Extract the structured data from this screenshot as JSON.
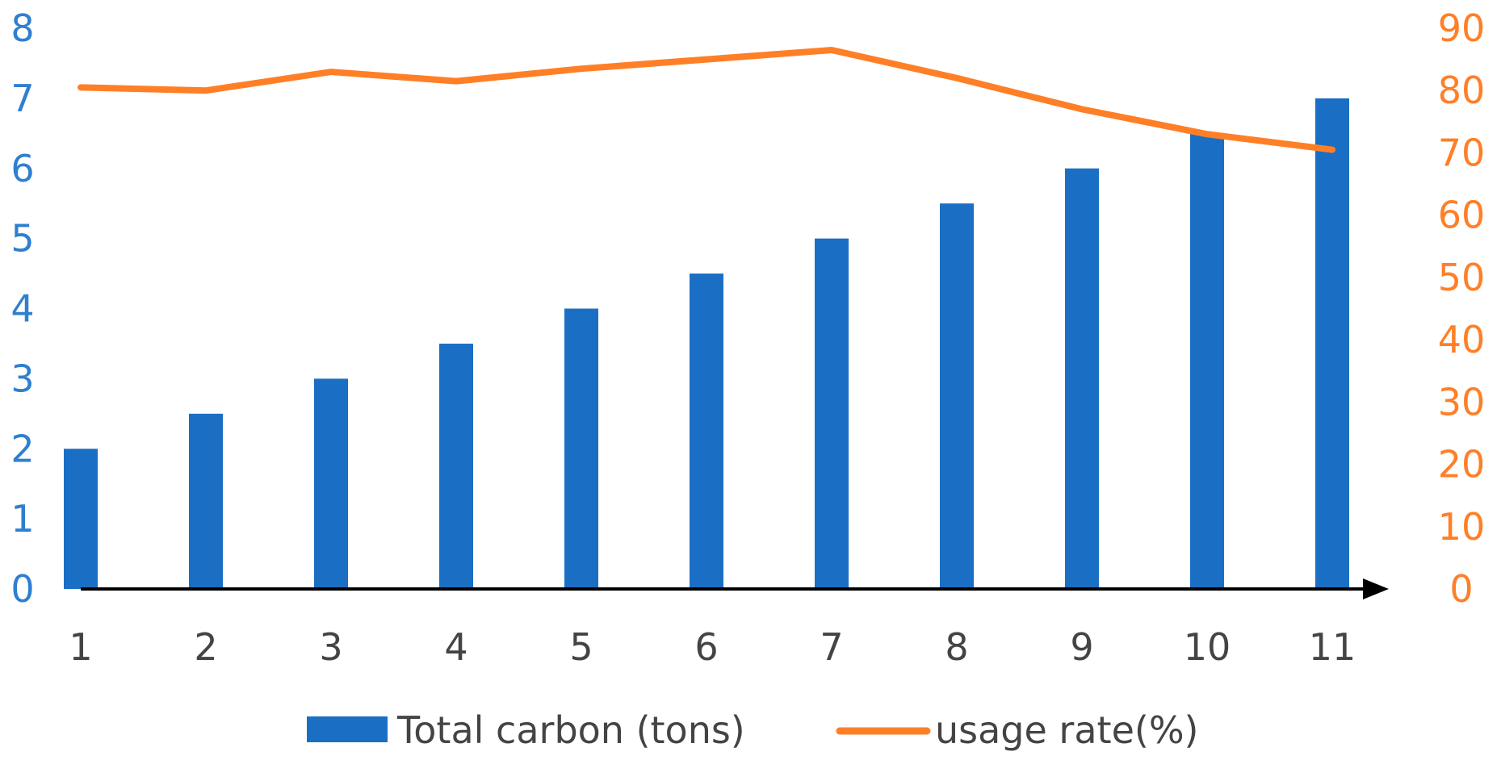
{
  "colors": {
    "bar": "#1a6fc4",
    "line": "#ff7f27",
    "left_axis_text": "#2f7fd0",
    "right_axis_text": "#ff7f27",
    "axis_line": "#000000"
  },
  "chart_data": {
    "type": "bar",
    "title": "",
    "xlabel": "",
    "ylabel": "",
    "y2label": "",
    "categories": [
      "1",
      "2",
      "3",
      "4",
      "5",
      "6",
      "7",
      "8",
      "9",
      "10",
      "11"
    ],
    "ylim": [
      0,
      8
    ],
    "y2lim": [
      0,
      90
    ],
    "yticks": [
      "0",
      "1",
      "2",
      "3",
      "4",
      "5",
      "6",
      "7",
      "8"
    ],
    "y2ticks": [
      "0",
      "10",
      "20",
      "30",
      "40",
      "50",
      "60",
      "70",
      "80",
      "90"
    ],
    "grid": false,
    "legend_position": "bottom",
    "series": [
      {
        "name": "Total carbon (tons)",
        "type": "bar",
        "axis": "left",
        "values": [
          2,
          2.5,
          3,
          3.5,
          4,
          4.5,
          5,
          5.5,
          6,
          6.5,
          7
        ]
      },
      {
        "name": "usage rate(%)",
        "type": "line",
        "axis": "right",
        "values": [
          80.5,
          80,
          83,
          81.5,
          83.5,
          85,
          86.5,
          82,
          77,
          73,
          70.5
        ]
      }
    ]
  }
}
